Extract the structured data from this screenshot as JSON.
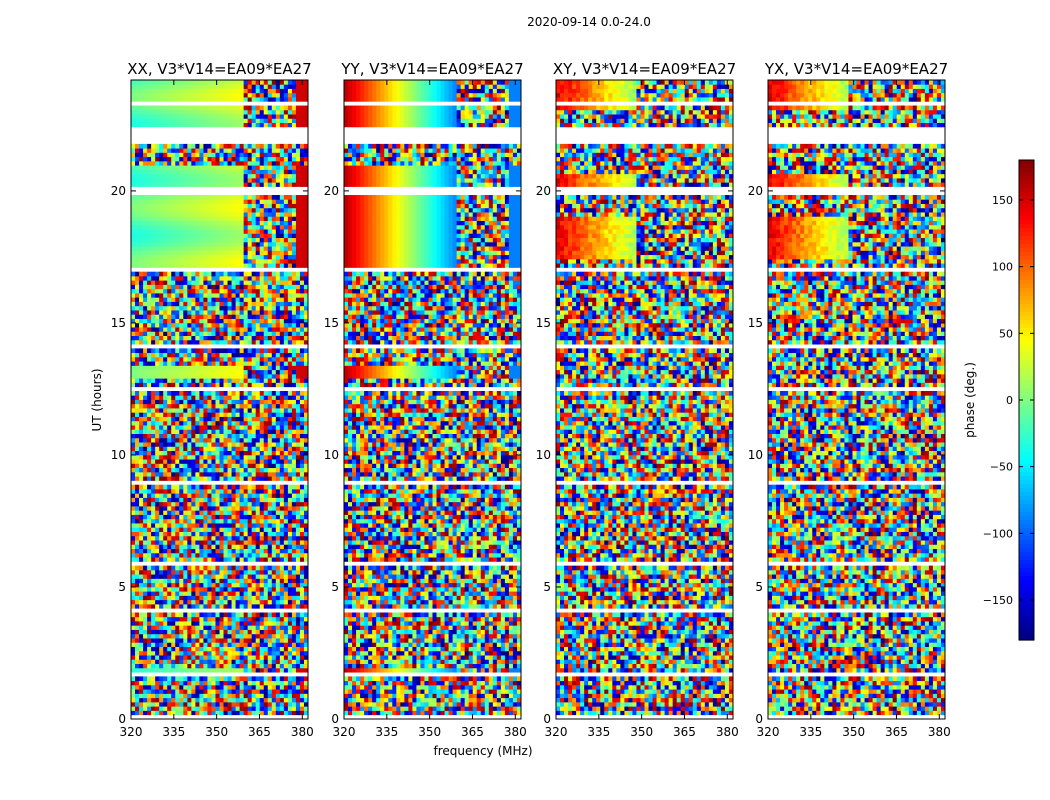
{
  "suptitle": "2020-09-14 0.0-24.0",
  "xlabel": "frequency (MHz)",
  "ylabel": "UT (hours)",
  "colorbar": {
    "label": "phase (deg.)",
    "range": [
      -180,
      180
    ],
    "ticks": [
      "150",
      "100",
      "50",
      "0",
      "−50",
      "−100",
      "−150"
    ],
    "tick_values": [
      150,
      100,
      50,
      0,
      -50,
      -100,
      -150
    ],
    "colormap": "jet"
  },
  "chart_data": {
    "type": "heatmap",
    "x_range_mhz": [
      320,
      382
    ],
    "y_range_hours": [
      0,
      24.2
    ],
    "x_ticks": [
      "320",
      "335",
      "350",
      "365",
      "380"
    ],
    "x_tick_values": [
      320,
      335,
      350,
      365,
      380
    ],
    "y_ticks": [
      "0",
      "5",
      "10",
      "15",
      "20"
    ],
    "y_tick_values": [
      0,
      5,
      10,
      15,
      20
    ],
    "panels": [
      {
        "title": "XX, V3*V14=EA09*EA27",
        "pol": "XX"
      },
      {
        "title": "YY, V3*V14=EA09*EA27",
        "pol": "YY"
      },
      {
        "title": "XY, V3*V14=EA09*EA27",
        "pol": "XY"
      },
      {
        "title": "YX, V3*V14=EA09*EA27",
        "pol": "YX"
      }
    ]
  }
}
